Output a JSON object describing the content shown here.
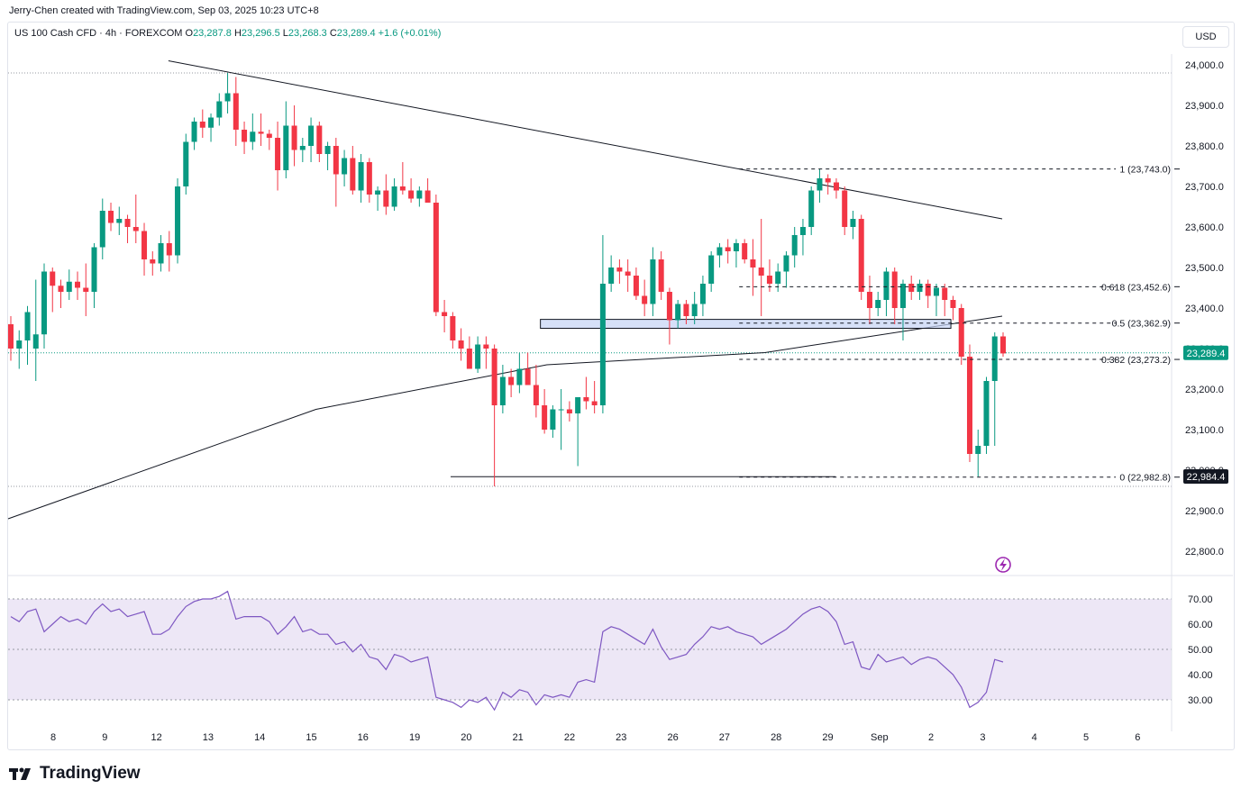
{
  "attribution": "Jerry-Chen created with TradingView.com, Sep 03, 2025 10:23 UTC+8",
  "legend": {
    "symbol": "US 100 Cash CFD · 4h · FOREXCOM",
    "o_label": "O",
    "o_value": "23,287.8",
    "h_label": "H",
    "h_value": "23,296.5",
    "l_label": "L",
    "l_value": "23,268.3",
    "c_label": "C",
    "c_value": "23,289.4",
    "change": "+1.6 (+0.01%)"
  },
  "currency_button": "USD",
  "price_axis_ticks": [
    "24,000.0",
    "23,900.0",
    "23,800.0",
    "23,700.0",
    "23,600.0",
    "23,500.0",
    "23,400.0",
    "23,300.0",
    "23,200.0",
    "23,100.0",
    "23,000.0",
    "22,900.0",
    "22,800.0"
  ],
  "rsi_axis_ticks": [
    "70.00",
    "60.00",
    "50.00",
    "40.00",
    "30.00"
  ],
  "time_axis_labels": [
    "8",
    "9",
    "12",
    "13",
    "14",
    "15",
    "16",
    "19",
    "20",
    "21",
    "22",
    "23",
    "26",
    "27",
    "28",
    "29",
    "Sep",
    "2",
    "3",
    "4",
    "5",
    "6"
  ],
  "fib_labels": {
    "l1": "1 (23,743.0)",
    "l0618": "0.618 (23,452.6)",
    "l05": "0.5 (23,362.9)",
    "l0382": "0.382 (23,273.2)",
    "l0": "0 (22,982.8)"
  },
  "price_tags": {
    "last": "23,289.4",
    "low": "22,984.4"
  },
  "footer_logo": "TradingView",
  "colors": {
    "up": "#089981",
    "down": "#f23645",
    "rsi": "#7e57c2",
    "rsi_band": "#ede7f6",
    "zone": "#c5d3f5"
  },
  "chart_data": {
    "type": "candlestick",
    "title": "US 100 Cash CFD · 4h · FOREXCOM",
    "ylim": [
      22740,
      24080
    ],
    "rsi_ylim": [
      25,
      75
    ],
    "rsi_levels": [
      70,
      50,
      30
    ],
    "candles": [
      [
        23360,
        23380,
        23270,
        23300
      ],
      [
        23300,
        23345,
        23250,
        23320
      ],
      [
        23320,
        23405,
        23260,
        23390
      ],
      [
        23300,
        23470,
        23220,
        23335
      ],
      [
        23335,
        23510,
        23300,
        23490
      ],
      [
        23490,
        23500,
        23390,
        23455
      ],
      [
        23455,
        23470,
        23400,
        23440
      ],
      [
        23440,
        23495,
        23420,
        23465
      ],
      [
        23465,
        23490,
        23420,
        23450
      ],
      [
        23450,
        23510,
        23380,
        23440
      ],
      [
        23440,
        23560,
        23400,
        23550
      ],
      [
        23550,
        23670,
        23520,
        23640
      ],
      [
        23640,
        23660,
        23590,
        23610
      ],
      [
        23610,
        23650,
        23580,
        23620
      ],
      [
        23620,
        23630,
        23560,
        23600
      ],
      [
        23600,
        23680,
        23560,
        23590
      ],
      [
        23590,
        23610,
        23480,
        23520
      ],
      [
        23520,
        23540,
        23480,
        23510
      ],
      [
        23510,
        23580,
        23490,
        23560
      ],
      [
        23560,
        23590,
        23490,
        23530
      ],
      [
        23530,
        23720,
        23510,
        23700
      ],
      [
        23700,
        23830,
        23680,
        23810
      ],
      [
        23810,
        23870,
        23790,
        23860
      ],
      [
        23860,
        23890,
        23820,
        23845
      ],
      [
        23845,
        23880,
        23810,
        23870
      ],
      [
        23870,
        23930,
        23850,
        23910
      ],
      [
        23910,
        23980,
        23880,
        23930
      ],
      [
        23930,
        23970,
        23800,
        23840
      ],
      [
        23840,
        23860,
        23780,
        23810
      ],
      [
        23810,
        23880,
        23790,
        23835
      ],
      [
        23835,
        23880,
        23800,
        23830
      ],
      [
        23830,
        23840,
        23790,
        23820
      ],
      [
        23820,
        23860,
        23690,
        23740
      ],
      [
        23740,
        23910,
        23720,
        23850
      ],
      [
        23850,
        23900,
        23750,
        23790
      ],
      [
        23790,
        23820,
        23760,
        23800
      ],
      [
        23800,
        23870,
        23760,
        23850
      ],
      [
        23850,
        23860,
        23760,
        23780
      ],
      [
        23780,
        23810,
        23740,
        23800
      ],
      [
        23800,
        23820,
        23650,
        23730
      ],
      [
        23730,
        23790,
        23700,
        23770
      ],
      [
        23770,
        23800,
        23680,
        23690
      ],
      [
        23690,
        23780,
        23660,
        23760
      ],
      [
        23760,
        23770,
        23660,
        23680
      ],
      [
        23680,
        23700,
        23640,
        23690
      ],
      [
        23690,
        23730,
        23630,
        23650
      ],
      [
        23650,
        23720,
        23640,
        23700
      ],
      [
        23700,
        23760,
        23680,
        23690
      ],
      [
        23690,
        23720,
        23660,
        23670
      ],
      [
        23670,
        23700,
        23650,
        23690
      ],
      [
        23690,
        23720,
        23660,
        23660
      ],
      [
        23660,
        23680,
        23380,
        23390
      ],
      [
        23390,
        23420,
        23340,
        23380
      ],
      [
        23380,
        23390,
        23300,
        23320
      ],
      [
        23320,
        23350,
        23270,
        23300
      ],
      [
        23300,
        23330,
        23260,
        23250
      ],
      [
        23250,
        23330,
        23240,
        23310
      ],
      [
        23310,
        23330,
        23250,
        23300
      ],
      [
        23300,
        23310,
        22960,
        23160
      ],
      [
        23160,
        23260,
        23140,
        23230
      ],
      [
        23230,
        23250,
        23180,
        23210
      ],
      [
        23210,
        23290,
        23190,
        23250
      ],
      [
        23250,
        23290,
        23210,
        23210
      ],
      [
        23210,
        23260,
        23130,
        23160
      ],
      [
        23160,
        23200,
        23090,
        23100
      ],
      [
        23100,
        23160,
        23080,
        23150
      ],
      [
        23150,
        23200,
        23050,
        23150
      ],
      [
        23150,
        23170,
        23120,
        23140
      ],
      [
        23140,
        23170,
        23010,
        23180
      ],
      [
        23180,
        23230,
        23150,
        23170
      ],
      [
        23170,
        23220,
        23140,
        23160
      ],
      [
        23160,
        23580,
        23140,
        23460
      ],
      [
        23460,
        23530,
        23440,
        23500
      ],
      [
        23500,
        23520,
        23460,
        23490
      ],
      [
        23490,
        23520,
        23440,
        23480
      ],
      [
        23480,
        23500,
        23420,
        23430
      ],
      [
        23430,
        23470,
        23380,
        23410
      ],
      [
        23410,
        23550,
        23380,
        23520
      ],
      [
        23520,
        23540,
        23420,
        23440
      ],
      [
        23440,
        23450,
        23310,
        23370
      ],
      [
        23370,
        23420,
        23350,
        23410
      ],
      [
        23410,
        23420,
        23360,
        23380
      ],
      [
        23380,
        23440,
        23360,
        23410
      ],
      [
        23410,
        23480,
        23380,
        23460
      ],
      [
        23460,
        23540,
        23440,
        23530
      ],
      [
        23530,
        23560,
        23500,
        23550
      ],
      [
        23550,
        23570,
        23510,
        23540
      ],
      [
        23540,
        23570,
        23500,
        23560
      ],
      [
        23560,
        23570,
        23510,
        23520
      ],
      [
        23520,
        23570,
        23430,
        23500
      ],
      [
        23500,
        23620,
        23380,
        23480
      ],
      [
        23480,
        23520,
        23440,
        23460
      ],
      [
        23460,
        23510,
        23440,
        23490
      ],
      [
        23490,
        23540,
        23450,
        23530
      ],
      [
        23530,
        23600,
        23500,
        23580
      ],
      [
        23580,
        23620,
        23530,
        23600
      ],
      [
        23600,
        23700,
        23580,
        23690
      ],
      [
        23690,
        23743,
        23660,
        23720
      ],
      [
        23720,
        23730,
        23680,
        23710
      ],
      [
        23710,
        23720,
        23670,
        23690
      ],
      [
        23690,
        23700,
        23580,
        23600
      ],
      [
        23600,
        23640,
        23570,
        23620
      ],
      [
        23620,
        23630,
        23420,
        23440
      ],
      [
        23440,
        23480,
        23360,
        23400
      ],
      [
        23400,
        23440,
        23380,
        23420
      ],
      [
        23420,
        23500,
        23380,
        23490
      ],
      [
        23490,
        23500,
        23360,
        23400
      ],
      [
        23400,
        23470,
        23320,
        23460
      ],
      [
        23460,
        23480,
        23420,
        23440
      ],
      [
        23440,
        23470,
        23420,
        23460
      ],
      [
        23460,
        23470,
        23400,
        23430
      ],
      [
        23430,
        23460,
        23380,
        23450
      ],
      [
        23450,
        23460,
        23380,
        23420
      ],
      [
        23420,
        23430,
        23370,
        23400
      ],
      [
        23400,
        23410,
        23260,
        23280
      ],
      [
        23280,
        23310,
        23020,
        23040
      ],
      [
        23040,
        23100,
        22984,
        23060
      ],
      [
        23060,
        23230,
        23040,
        23220
      ],
      [
        23220,
        23340,
        23060,
        23330
      ],
      [
        23330,
        23340,
        23280,
        23288
      ]
    ],
    "rsi": [
      63,
      61,
      65,
      66,
      57,
      60,
      63,
      61,
      62,
      60,
      65,
      68,
      65,
      66,
      63,
      64,
      65,
      56,
      56,
      58,
      63,
      67,
      69,
      70,
      70,
      71,
      73,
      62,
      63,
      63,
      63,
      61,
      56,
      59,
      63,
      57,
      58,
      56,
      56,
      52,
      53,
      49,
      52,
      47,
      46,
      42,
      48,
      47,
      45,
      46,
      47,
      31,
      30,
      29,
      27,
      30,
      29,
      31,
      26,
      33,
      31,
      34,
      33,
      28,
      32,
      31,
      32,
      31,
      37,
      38,
      37,
      57,
      59,
      58,
      56,
      54,
      52,
      58,
      51,
      46,
      47,
      48,
      52,
      55,
      59,
      58,
      59,
      57,
      56,
      55,
      52,
      54,
      56,
      58,
      61,
      64,
      66,
      67,
      65,
      61,
      52,
      53,
      43,
      42,
      48,
      45,
      46,
      47,
      44,
      46,
      47,
      46,
      43,
      40,
      35,
      27,
      29,
      33,
      46,
      45
    ],
    "ma_line": [
      [
        0,
        22880
      ],
      [
        48,
        23150
      ],
      [
        84,
        23260
      ],
      [
        118,
        23290
      ],
      [
        155,
        23380
      ]
    ],
    "trendline": [
      [
        25,
        24010
      ],
      [
        155,
        23620
      ]
    ],
    "support_line": {
      "from": 69,
      "to": 129,
      "y": 22984
    },
    "zone": {
      "from": 83,
      "to": 147,
      "y1": 23350,
      "y2": 23372
    },
    "fib": {
      "from": 114,
      "to": 161,
      "levels": [
        [
          1,
          23743.0
        ],
        [
          0.618,
          23452.6
        ],
        [
          0.5,
          23362.9
        ],
        [
          0.382,
          23273.2
        ],
        [
          0,
          22982.8
        ]
      ]
    },
    "top_dotted": 23980,
    "bottom_dotted": 22960,
    "last_price": 23289.4
  }
}
